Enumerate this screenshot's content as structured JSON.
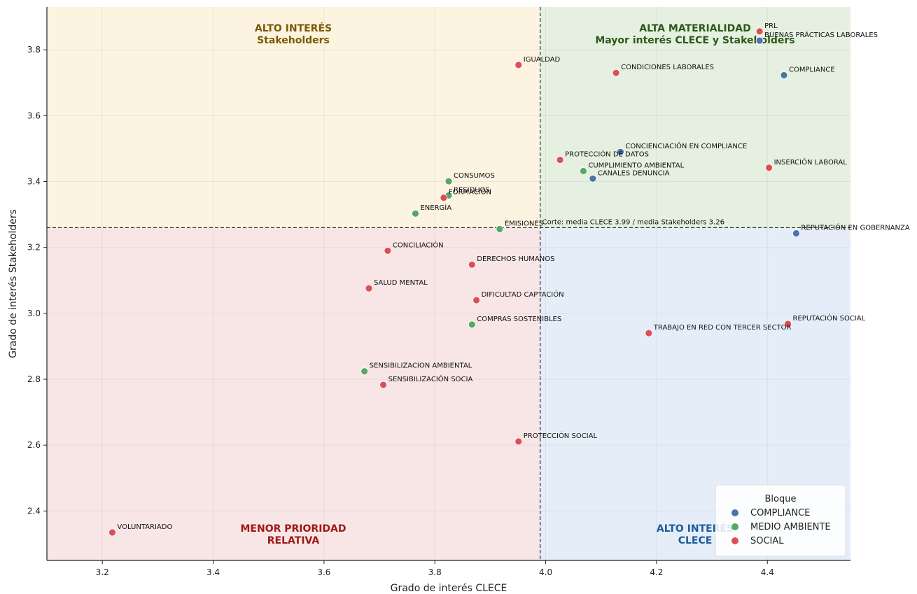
{
  "colors": {
    "COMPLIANCE": "#4c72b0",
    "MEDIO AMBIENTE": "#55a868",
    "SOCIAL": "#dd4f56",
    "quad_top_left": "#fdf3e1",
    "quad_top_right": "#e6f0e0",
    "quad_bottom_left": "#f8e6e6",
    "quad_bottom_right": "#e5eef8",
    "quad_text_top_left": "#7a5a00",
    "quad_text_top_right": "#2a5a18",
    "quad_text_bottom_left": "#a01818",
    "quad_text_bottom_right": "#1f5a9a"
  },
  "chart_data": {
    "type": "scatter",
    "xlabel": "Grado de interés CLECE",
    "ylabel": "Grado de interés Stakeholders",
    "xlim": [
      3.1,
      4.55
    ],
    "ylim": [
      2.25,
      3.93
    ],
    "xticks": [
      "3.2",
      "3.4",
      "3.6",
      "3.8",
      "4.0",
      "4.2",
      "4.4"
    ],
    "yticks": [
      "2.4",
      "2.6",
      "2.8",
      "3.0",
      "3.2",
      "3.4",
      "3.6",
      "3.8"
    ],
    "cut": {
      "x": 3.99,
      "y": 3.26,
      "label": "Corte: media CLECE 3.99 / media Stakeholders 3.26"
    },
    "quadrants": {
      "top_left": [
        "ALTO INTERÉS",
        "Stakeholders"
      ],
      "top_right": [
        "ALTA MATERIALIDAD",
        "Mayor interés CLECE y Stakeholders"
      ],
      "bottom_left": [
        "MENOR PRIORIDAD",
        "RELATIVA"
      ],
      "bottom_right": [
        "ALTO INTERÉS",
        "CLECE"
      ]
    },
    "legend": {
      "title": "Bloque",
      "position": "bottom-right",
      "entries": [
        "COMPLIANCE",
        "MEDIO AMBIENTE",
        "SOCIAL"
      ]
    },
    "points": [
      {
        "label": "PRL",
        "group": "SOCIAL",
        "x": 4.386,
        "y": 3.856
      },
      {
        "label": "BUENAS PRÁCTICAS LABORALES",
        "group": "COMPLIANCE",
        "x": 4.386,
        "y": 3.828
      },
      {
        "label": "COMPLIANCE",
        "group": "COMPLIANCE",
        "x": 4.43,
        "y": 3.723
      },
      {
        "label": "IGUALDAD",
        "group": "SOCIAL",
        "x": 3.951,
        "y": 3.754
      },
      {
        "label": "CONDICIONES LABORALES",
        "group": "SOCIAL",
        "x": 4.127,
        "y": 3.73
      },
      {
        "label": "CONCIENCIACIÓN EN COMPLIANCE",
        "group": "COMPLIANCE",
        "x": 4.135,
        "y": 3.49
      },
      {
        "label": "PROTECCIÓN DE DATOS",
        "group": "SOCIAL",
        "x": 4.026,
        "y": 3.466
      },
      {
        "label": "CUMPLIMIENTO AMBIENTAL",
        "group": "MEDIO AMBIENTE",
        "x": 4.068,
        "y": 3.432
      },
      {
        "label": "CANALES  DENUNCIA",
        "group": "COMPLIANCE",
        "x": 4.085,
        "y": 3.409
      },
      {
        "label": "INSERCIÓN LABORAL",
        "group": "SOCIAL",
        "x": 4.403,
        "y": 3.442
      },
      {
        "label": "CONSUMOS",
        "group": "MEDIO AMBIENTE",
        "x": 3.825,
        "y": 3.401
      },
      {
        "label": "RESIDUOS",
        "group": "MEDIO AMBIENTE",
        "x": 3.825,
        "y": 3.358
      },
      {
        "label": "FORMACIÓN",
        "group": "SOCIAL",
        "x": 3.816,
        "y": 3.351
      },
      {
        "label": "ENERGÍA",
        "group": "MEDIO AMBIENTE",
        "x": 3.765,
        "y": 3.303
      },
      {
        "label": "EMISIONES",
        "group": "MEDIO AMBIENTE",
        "x": 3.917,
        "y": 3.256
      },
      {
        "label": "REPUTACIÓN EN GOBERNANZA",
        "group": "COMPLIANCE",
        "x": 4.452,
        "y": 3.243
      },
      {
        "label": "CONCILIACIÓN",
        "group": "SOCIAL",
        "x": 3.715,
        "y": 3.19
      },
      {
        "label": "DERECHOS HUMANOS",
        "group": "SOCIAL",
        "x": 3.867,
        "y": 3.148
      },
      {
        "label": "SALUD MENTAL",
        "group": "SOCIAL",
        "x": 3.681,
        "y": 3.076
      },
      {
        "label": "DIFICULTAD CAPTACIÓN",
        "group": "SOCIAL",
        "x": 3.875,
        "y": 3.04
      },
      {
        "label": "COMPRAS SOSTENIBLES",
        "group": "MEDIO AMBIENTE",
        "x": 3.867,
        "y": 2.966
      },
      {
        "label": "REPUTACIÓN SOCIAL",
        "group": "SOCIAL",
        "x": 4.437,
        "y": 2.968
      },
      {
        "label": "TRABAJO EN RED CON TERCER SECTOR",
        "group": "SOCIAL",
        "x": 4.186,
        "y": 2.94
      },
      {
        "label": "SENSIBILIZACION AMBIENTAL",
        "group": "MEDIO AMBIENTE",
        "x": 3.673,
        "y": 2.824
      },
      {
        "label": "SENSIBILIZACIÓN SOCIA",
        "group": "SOCIAL",
        "x": 3.707,
        "y": 2.783
      },
      {
        "label": "PROTECCIÓN SOCIAL",
        "group": "SOCIAL",
        "x": 3.951,
        "y": 2.611
      },
      {
        "label": "VOLUNTARIADO",
        "group": "SOCIAL",
        "x": 3.218,
        "y": 2.335
      }
    ]
  }
}
